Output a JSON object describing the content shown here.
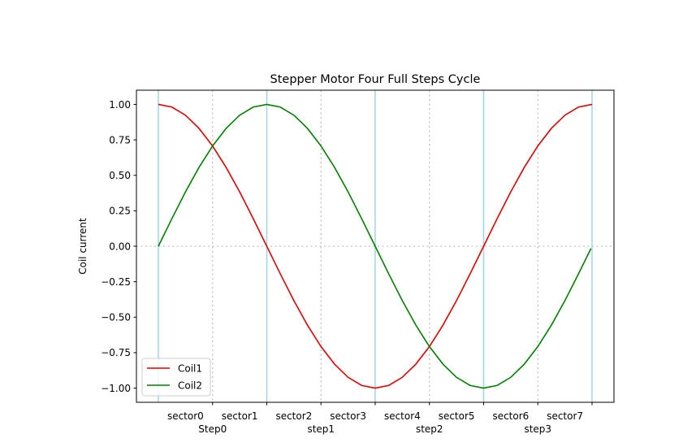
{
  "chart_data": {
    "type": "line",
    "title": "Stepper Motor Four Full Steps Cycle",
    "xlabel": "",
    "ylabel": "Coil current",
    "ylim": [
      -1.1,
      1.1
    ],
    "y_ticks": [
      1.0,
      0.75,
      0.5,
      0.25,
      0.0,
      -0.25,
      -0.5,
      -0.75,
      -1.0
    ],
    "y_tick_labels": [
      "1.00",
      "0.75",
      "0.50",
      "0.25",
      "0.00",
      "−0.25",
      "−0.50",
      "−0.75",
      "−1.00"
    ],
    "x_tick_labels": [
      "sector0",
      "sector1",
      "sector2",
      "sector3",
      "sector4",
      "sector5",
      "sector6",
      "sector7"
    ],
    "x_step_labels": [
      "Step0",
      "step1",
      "step2",
      "step3"
    ],
    "series": [
      {
        "name": "Coil1",
        "color": "#e00000",
        "x": [
          0.0,
          0.125,
          0.25,
          0.375,
          0.5,
          0.625,
          0.75,
          0.875,
          1.0,
          1.125,
          1.25,
          1.375,
          1.5,
          1.625,
          1.75,
          1.875,
          2.0,
          2.125,
          2.25,
          2.375,
          2.5,
          2.625,
          2.75,
          2.875,
          3.0,
          3.125,
          3.25,
          3.375,
          3.5,
          3.625,
          3.75,
          3.875,
          4.0
        ],
        "values": [
          1.0,
          0.981,
          0.924,
          0.831,
          0.707,
          0.556,
          0.383,
          0.195,
          0.0,
          -0.195,
          -0.383,
          -0.556,
          -0.707,
          -0.831,
          -0.924,
          -0.981,
          -1.0,
          -0.981,
          -0.924,
          -0.831,
          -0.707,
          -0.556,
          -0.383,
          -0.195,
          0.0,
          0.195,
          0.383,
          0.556,
          0.707,
          0.831,
          0.924,
          0.981,
          1.0
        ]
      },
      {
        "name": "Coil2",
        "color": "#008000",
        "x": [
          0.0,
          0.125,
          0.25,
          0.375,
          0.5,
          0.625,
          0.75,
          0.875,
          1.0,
          1.125,
          1.25,
          1.375,
          1.5,
          1.625,
          1.75,
          1.875,
          2.0,
          2.125,
          2.25,
          2.375,
          2.5,
          2.625,
          2.75,
          2.875,
          3.0,
          3.125,
          3.25,
          3.375,
          3.5,
          3.625,
          3.75,
          3.875,
          3.99
        ],
        "values": [
          0.0,
          0.195,
          0.383,
          0.556,
          0.707,
          0.831,
          0.924,
          0.981,
          1.0,
          0.981,
          0.924,
          0.831,
          0.707,
          0.556,
          0.383,
          0.195,
          0.0,
          -0.195,
          -0.383,
          -0.556,
          -0.707,
          -0.831,
          -0.924,
          -0.981,
          -1.0,
          -0.981,
          -0.924,
          -0.831,
          -0.707,
          -0.556,
          -0.383,
          -0.195,
          -0.016
        ]
      }
    ],
    "step_lines": [
      0,
      1,
      2,
      3,
      4
    ],
    "sector_lines": [
      0.5,
      1.5,
      2.5,
      3.5
    ],
    "zero_line": 0,
    "grid": false,
    "legend": "lower-left",
    "step_line_color": "#9fd6e0",
    "sector_line_color": "#c0c0c0"
  }
}
